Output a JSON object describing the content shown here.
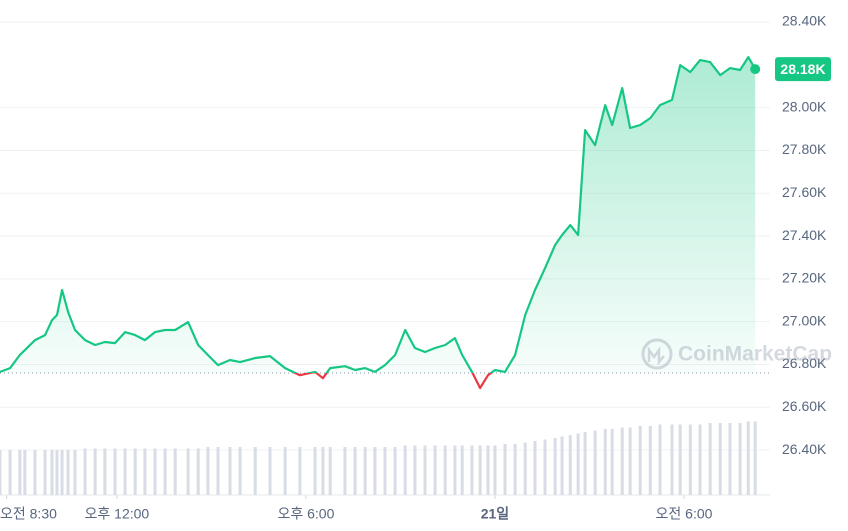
{
  "chart_data": {
    "type": "line",
    "x": [
      8.29,
      8.61,
      8.92,
      9.08,
      9.4,
      9.72,
      9.94,
      10.1,
      10.26,
      10.45,
      10.67,
      10.99,
      11.31,
      11.62,
      11.94,
      12.26,
      12.58,
      12.89,
      13.21,
      13.53,
      13.85,
      14.26,
      14.58,
      14.89,
      15.21,
      15.59,
      15.91,
      16.39,
      16.86,
      17.34,
      17.81,
      18.29,
      18.54,
      18.77,
      19.24,
      19.56,
      19.88,
      20.19,
      20.51,
      20.83,
      21.15,
      21.46,
      21.78,
      22.1,
      22.42,
      22.73,
      22.96,
      23.27,
      23.53,
      23.78,
      24.0,
      24.32,
      24.64,
      24.96,
      25.27,
      25.59,
      25.91,
      26.13,
      26.39,
      26.64,
      26.86,
      27.18,
      27.5,
      27.72,
      28.04,
      28.29,
      28.61,
      28.93,
      29.24,
      29.62,
      29.88,
      30.2,
      30.51,
      30.83,
      31.15,
      31.46,
      31.78,
      32.04,
      32.26
    ],
    "series": [
      {
        "color": "#16c784",
        "below_color": "#ea3943",
        "values": [
          26765,
          26783,
          26844,
          26867,
          26914,
          26937,
          27007,
          27031,
          27148,
          27045,
          26961,
          26914,
          26891,
          26905,
          26900,
          26951,
          26937,
          26914,
          26951,
          26961,
          26961,
          26998,
          26891,
          26844,
          26797,
          26821,
          26811,
          26830,
          26839,
          26783,
          26750,
          26765,
          26736,
          26783,
          26792,
          26774,
          26783,
          26765,
          26797,
          26844,
          26961,
          26877,
          26858,
          26877,
          26891,
          26923,
          26844,
          26765,
          26690,
          26750,
          26774,
          26765,
          26844,
          27031,
          27148,
          27250,
          27358,
          27405,
          27451,
          27405,
          27895,
          27825,
          28012,
          27919,
          28092,
          27905,
          27919,
          27951,
          28012,
          28036,
          28199,
          28166,
          28222,
          28213,
          28152,
          28185,
          28176,
          28236,
          28180
        ]
      }
    ],
    "last_label": "28.18K",
    "reference_line": 26760,
    "volume": {
      "color": "#d7dce5",
      "ylim": [
        0,
        330
      ],
      "values": [
        30,
        30,
        30,
        30,
        30,
        30,
        30,
        30,
        30,
        30,
        30,
        31,
        31,
        31,
        31,
        31,
        31,
        31,
        31,
        31,
        31,
        31,
        31,
        32,
        32,
        32,
        32,
        32,
        32,
        32,
        32,
        32,
        32,
        32,
        32,
        32,
        32,
        32,
        32,
        32,
        33,
        33,
        33,
        33,
        33,
        33,
        33,
        33,
        33,
        33,
        33,
        34,
        34,
        35,
        36,
        37,
        38,
        39,
        40,
        41,
        42,
        43,
        44,
        44,
        45,
        45,
        46,
        46,
        47,
        47,
        47,
        47,
        47,
        48,
        48,
        48,
        48,
        49,
        49
      ]
    },
    "xlim": [
      8.29,
      32.73
    ],
    "xticks": [
      {
        "value": 8.5,
        "label": "오전 8:30"
      },
      {
        "value": 12,
        "label": "오후 12:00"
      },
      {
        "value": 18,
        "label": "오후 6:00"
      },
      {
        "value": 24,
        "label": "21일"
      },
      {
        "value": 30,
        "label": "오전 6:00"
      }
    ],
    "ylim": [
      26190,
      28503
    ],
    "yticks": [
      {
        "value": 26400,
        "label": "26.40K"
      },
      {
        "value": 26600,
        "label": "26.60K"
      },
      {
        "value": 26800,
        "label": "26.80K"
      },
      {
        "value": 27000,
        "label": "27.00K"
      },
      {
        "value": 27200,
        "label": "27.20K"
      },
      {
        "value": 27400,
        "label": "27.40K"
      },
      {
        "value": 27600,
        "label": "27.60K"
      },
      {
        "value": 27800,
        "label": "27.80K"
      },
      {
        "value": 28000,
        "label": "28.00K"
      },
      {
        "value": 28400,
        "label": "28.40K"
      }
    ],
    "grid": true,
    "watermark": "CoinMarketCap"
  }
}
